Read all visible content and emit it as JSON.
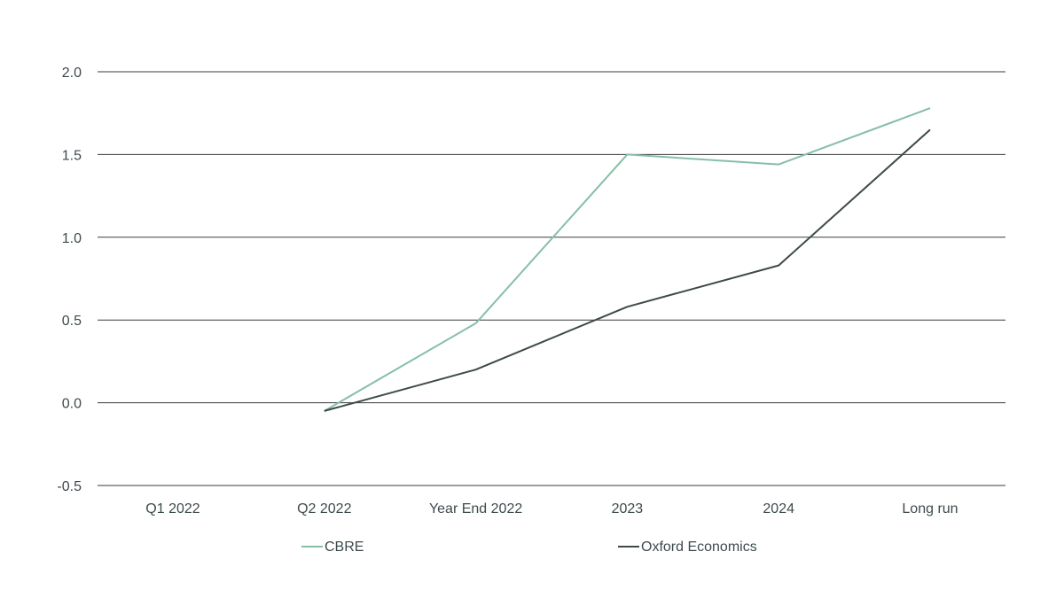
{
  "chart_data": {
    "type": "line",
    "categories": [
      "Q1 2022",
      "Q2 2022",
      "Year End 2022",
      "2023",
      "2024",
      "Long run"
    ],
    "series": [
      {
        "name": "CBRE",
        "color": "#86bfa6",
        "values": [
          null,
          -0.05,
          0.48,
          1.5,
          1.44,
          1.78
        ]
      },
      {
        "name": "Oxford Economics",
        "color": "#3e4a4a",
        "values": [
          null,
          -0.05,
          0.2,
          0.58,
          0.83,
          1.65
        ]
      }
    ],
    "title": "",
    "xlabel": "",
    "ylabel": "",
    "ylim": [
      -0.5,
      2.0
    ],
    "yticks": [
      -0.5,
      0.0,
      0.5,
      1.0,
      1.5,
      2.0
    ],
    "ytick_labels": [
      "-0.5",
      "0.0",
      "0.5",
      "1.0",
      "1.5",
      "2.0"
    ],
    "grid": true,
    "legend_position": "bottom"
  }
}
